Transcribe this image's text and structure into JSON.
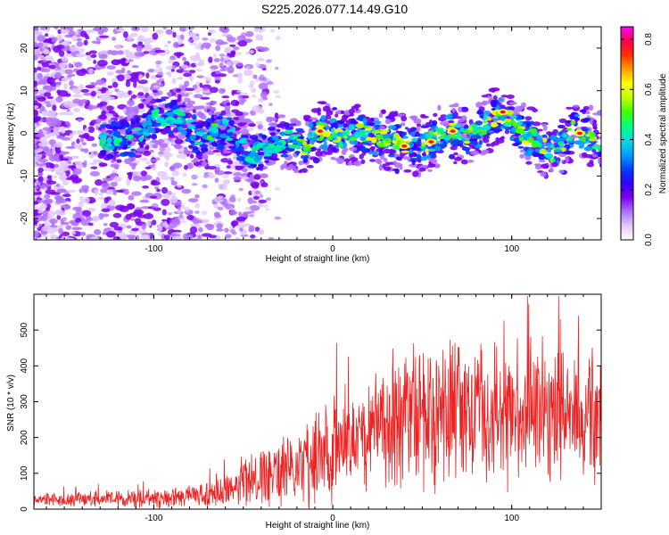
{
  "title": "S225.2026.077.14.49.G10",
  "colors": {
    "snr_line": "#ee2222",
    "axis": "#000000"
  },
  "chart_data": [
    {
      "type": "heatmap",
      "xlabel": "Height of straight line (km)",
      "ylabel": "Frequency (Hz)",
      "xlim": [
        -167,
        150
      ],
      "ylim": [
        -25,
        25
      ],
      "xticks": [
        -100,
        0,
        100
      ],
      "xtick_labels": [
        "-100",
        "0",
        "100"
      ],
      "yticks": [
        -20,
        -10,
        0,
        10,
        20
      ],
      "ytick_labels": [
        "-20",
        "-10",
        "0",
        "10",
        "20"
      ],
      "colorbar": {
        "label": "Normalized spectral amplitude",
        "range": [
          0.0,
          0.85
        ],
        "ticks": [
          0.0,
          0.2,
          0.4,
          0.6,
          0.8
        ],
        "tick_labels": [
          "0.0",
          "0.2",
          "0.4",
          "0.6",
          "0.8"
        ],
        "palette": [
          "#ffffff",
          "#e0c8ff",
          "#b070ff",
          "#7a00f0",
          "#3000ff",
          "#0040ff",
          "#00a0ff",
          "#00e0e0",
          "#00ff80",
          "#40ff00",
          "#c0ff00",
          "#ffff00",
          "#ffa000",
          "#ff3000",
          "#ff0050",
          "#ff00ff"
        ]
      },
      "ridge": [
        {
          "x": -125,
          "f": -1.5
        },
        {
          "x": -110,
          "f": -1
        },
        {
          "x": -97,
          "f": 4
        },
        {
          "x": -85,
          "f": 3
        },
        {
          "x": -75,
          "f": -1
        },
        {
          "x": -60,
          "f": 1
        },
        {
          "x": -45,
          "f": -5
        },
        {
          "x": -35,
          "f": -3
        },
        {
          "x": -25,
          "f": -1
        },
        {
          "x": -15,
          "f": -3
        },
        {
          "x": -7,
          "f": 0.5
        },
        {
          "x": 5,
          "f": -1
        },
        {
          "x": 15,
          "f": 0
        },
        {
          "x": 25,
          "f": -1
        },
        {
          "x": 35,
          "f": -2
        },
        {
          "x": 45,
          "f": -3
        },
        {
          "x": 55,
          "f": -2
        },
        {
          "x": 65,
          "f": 0.5
        },
        {
          "x": 75,
          "f": -1
        },
        {
          "x": 85,
          "f": 2
        },
        {
          "x": 95,
          "f": 5
        },
        {
          "x": 105,
          "f": 0
        },
        {
          "x": 115,
          "f": -2
        },
        {
          "x": 125,
          "f": -5
        },
        {
          "x": 135,
          "f": 1
        },
        {
          "x": 145,
          "f": -1
        },
        {
          "x": 150,
          "f": -2
        }
      ]
    },
    {
      "type": "line",
      "xlabel": "Height of straight line (km)",
      "ylabel": "SNR (10 * v/v)",
      "xlim": [
        -167,
        150
      ],
      "ylim": [
        0,
        600
      ],
      "xticks": [
        -100,
        0,
        100
      ],
      "xtick_labels": [
        "-100",
        "0",
        "100"
      ],
      "yticks": [
        0,
        100,
        200,
        300,
        400,
        500
      ],
      "ytick_labels": [
        "0",
        "100",
        "200",
        "300",
        "400",
        "500"
      ],
      "series": [
        {
          "name": "SNR",
          "envelope": [
            {
              "x": -167,
              "mean": 25,
              "spread": 20
            },
            {
              "x": -140,
              "mean": 28,
              "spread": 25
            },
            {
              "x": -100,
              "mean": 30,
              "spread": 30
            },
            {
              "x": -80,
              "mean": 35,
              "spread": 35
            },
            {
              "x": -60,
              "mean": 45,
              "spread": 50
            },
            {
              "x": -45,
              "mean": 80,
              "spread": 90
            },
            {
              "x": -30,
              "mean": 100,
              "spread": 110
            },
            {
              "x": -15,
              "mean": 130,
              "spread": 140
            },
            {
              "x": 0,
              "mean": 170,
              "spread": 170
            },
            {
              "x": 15,
              "mean": 210,
              "spread": 180
            },
            {
              "x": 30,
              "mean": 240,
              "spread": 220
            },
            {
              "x": 45,
              "mean": 260,
              "spread": 240
            },
            {
              "x": 60,
              "mean": 260,
              "spread": 230
            },
            {
              "x": 80,
              "mean": 270,
              "spread": 250
            },
            {
              "x": 100,
              "mean": 265,
              "spread": 240
            },
            {
              "x": 120,
              "mean": 255,
              "spread": 220
            },
            {
              "x": 150,
              "mean": 250,
              "spread": 200
            }
          ]
        }
      ]
    }
  ]
}
